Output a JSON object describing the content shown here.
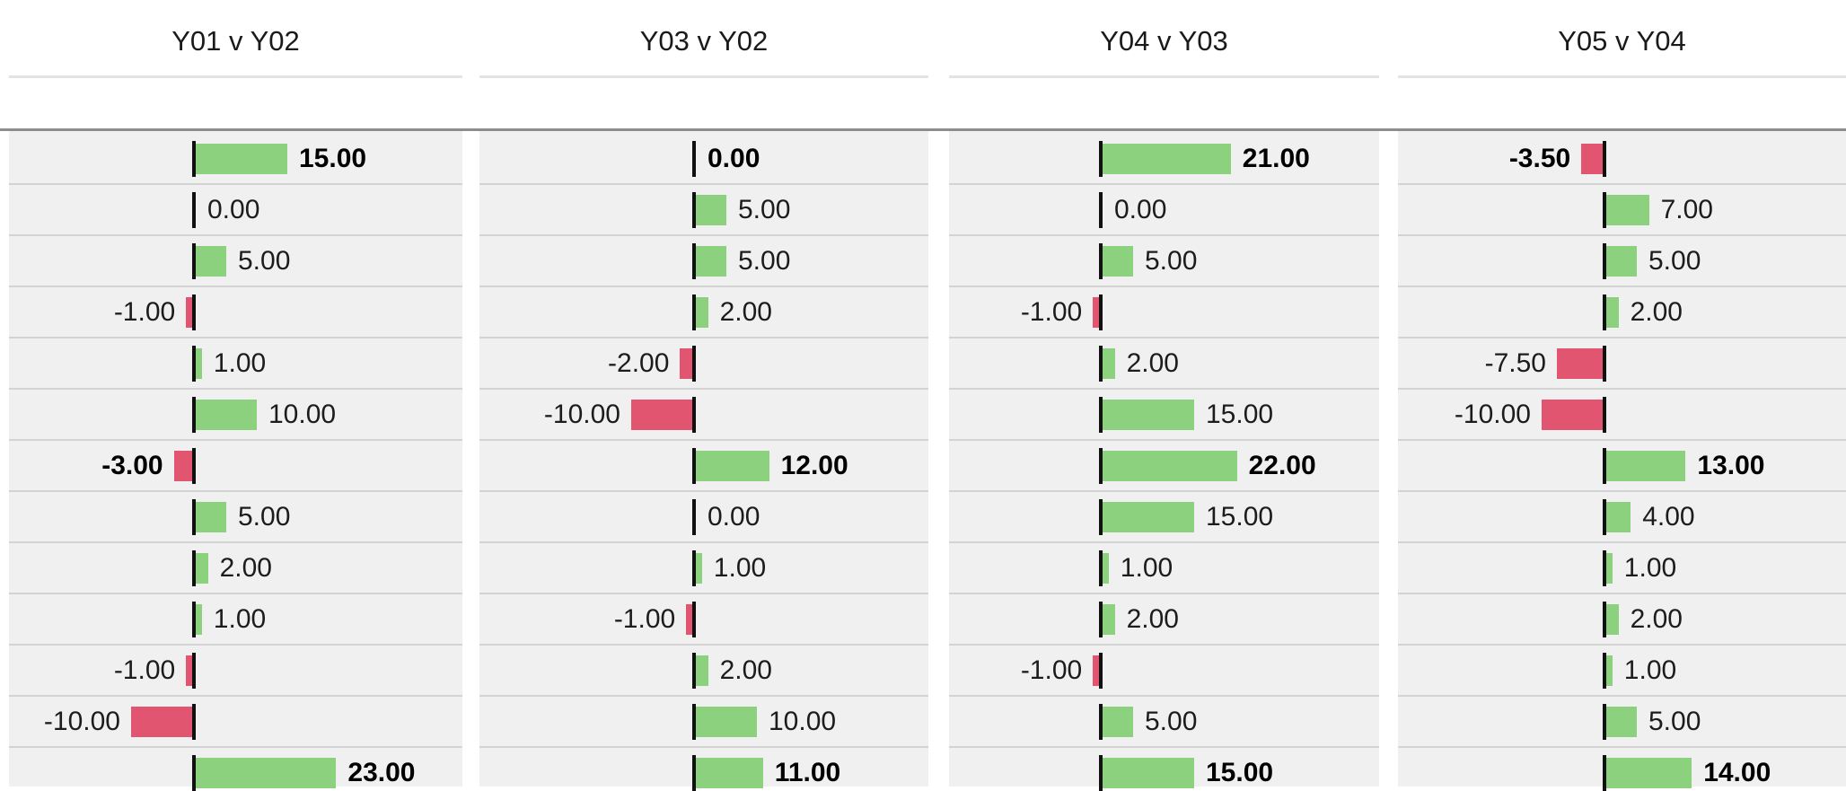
{
  "chart_data": {
    "type": "bar",
    "orientation": "horizontal",
    "title": "",
    "panels": [
      {
        "title": "Y01 v Y02",
        "values": [
          15,
          0,
          5,
          -1,
          1,
          10,
          -3,
          5,
          2,
          1,
          -1,
          -10,
          23
        ],
        "labels": [
          "15.00",
          "0.00",
          "5.00",
          "-1.00",
          "1.00",
          "10.00",
          "-3.00",
          "5.00",
          "2.00",
          "1.00",
          "-1.00",
          "-10.00",
          "23.00"
        ],
        "bold": [
          true,
          false,
          false,
          false,
          false,
          false,
          true,
          false,
          false,
          false,
          false,
          false,
          true
        ]
      },
      {
        "title": "Y03 v Y02",
        "values": [
          0,
          5,
          5,
          2,
          -2,
          -10,
          12,
          0,
          1,
          -1,
          2,
          10,
          11
        ],
        "labels": [
          "0.00",
          "5.00",
          "5.00",
          "2.00",
          "-2.00",
          "-10.00",
          "12.00",
          "0.00",
          "1.00",
          "-1.00",
          "2.00",
          "10.00",
          "11.00"
        ],
        "bold": [
          true,
          false,
          false,
          false,
          false,
          false,
          true,
          false,
          false,
          false,
          false,
          false,
          true
        ]
      },
      {
        "title": "Y04 v Y03",
        "values": [
          21,
          0,
          5,
          -1,
          2,
          15,
          22,
          15,
          1,
          2,
          -1,
          5,
          15
        ],
        "labels": [
          "21.00",
          "0.00",
          "5.00",
          "-1.00",
          "2.00",
          "15.00",
          "22.00",
          "15.00",
          "1.00",
          "2.00",
          "-1.00",
          "5.00",
          "15.00"
        ],
        "bold": [
          true,
          false,
          false,
          false,
          false,
          false,
          true,
          false,
          false,
          false,
          false,
          false,
          true
        ]
      },
      {
        "title": "Y05 v Y04",
        "values": [
          -3.5,
          7,
          5,
          2,
          -7.5,
          -10,
          13,
          4,
          1,
          2,
          1,
          5,
          14
        ],
        "labels": [
          "-3.50",
          "7.00",
          "5.00",
          "2.00",
          "-7.50",
          "-10.00",
          "13.00",
          "4.00",
          "1.00",
          "2.00",
          "1.00",
          "5.00",
          "14.00"
        ],
        "bold": [
          true,
          false,
          false,
          false,
          false,
          false,
          true,
          false,
          false,
          false,
          false,
          false,
          true
        ]
      }
    ],
    "colors": {
      "positive": "#8cd17d",
      "negative": "#e15570",
      "axis": "#111111"
    },
    "grid": false,
    "legend": "none"
  }
}
